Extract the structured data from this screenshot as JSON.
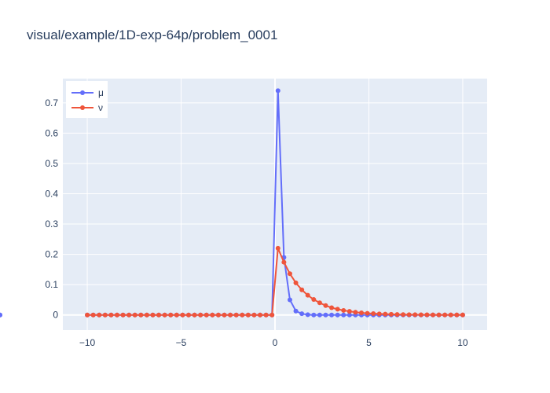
{
  "title": "visual/example/1D-exp-64p/problem_0001",
  "chart_data": {
    "type": "line",
    "title": "visual/example/1D-exp-64p/problem_0001",
    "xlabel": "",
    "ylabel": "",
    "xlim": [
      -11.3,
      11.3
    ],
    "ylim": [
      -0.05,
      0.78
    ],
    "x_ticks": [
      -10,
      -5,
      0,
      5,
      10
    ],
    "x_tick_labels": [
      "−10",
      "−5",
      "0",
      "5",
      "10"
    ],
    "y_ticks": [
      0,
      0.1,
      0.2,
      0.3,
      0.4,
      0.5,
      0.6,
      0.7
    ],
    "y_tick_labels": [
      "0",
      "0.1",
      "0.2",
      "0.3",
      "0.4",
      "0.5",
      "0.6",
      "0.7"
    ],
    "grid": true,
    "legend": "top-left",
    "x_range": [
      -10,
      10
    ],
    "n_points": 64,
    "series": [
      {
        "name": "μ",
        "color": "#636efa",
        "values": [
          0,
          0,
          0,
          0,
          0,
          0,
          0,
          0,
          0,
          0,
          0,
          0,
          0,
          0,
          0,
          0,
          0,
          0,
          0,
          0,
          0,
          0,
          0,
          0,
          0,
          0,
          0,
          0,
          0,
          0,
          0,
          0,
          0.74,
          0.19,
          0.05,
          0.013,
          0.004,
          0.001,
          0,
          0,
          0,
          0,
          0,
          0,
          0,
          0,
          0,
          0,
          0,
          0,
          0,
          0,
          0,
          0,
          0,
          0,
          0,
          0,
          0,
          0,
          0,
          0,
          0,
          0,
          0,
          0
        ]
      },
      {
        "name": "ν",
        "color": "#ef553b",
        "values": [
          0,
          0,
          0,
          0,
          0,
          0,
          0,
          0,
          0,
          0,
          0,
          0,
          0,
          0,
          0,
          0,
          0,
          0,
          0,
          0,
          0,
          0,
          0,
          0,
          0,
          0,
          0,
          0,
          0,
          0,
          0,
          0,
          0.22,
          0.174,
          0.136,
          0.106,
          0.083,
          0.065,
          0.051,
          0.04,
          0.031,
          0.024,
          0.019,
          0.015,
          0.012,
          0.009,
          0.007,
          0.0056,
          0.0044,
          0.0034,
          0.0027,
          0.0021,
          0.0016,
          0.0013,
          0.001,
          0.0008,
          0.0006,
          0.0005,
          0.0004,
          0.0003,
          0.0002,
          0.0002,
          0.0001,
          0.0001
        ]
      }
    ]
  }
}
